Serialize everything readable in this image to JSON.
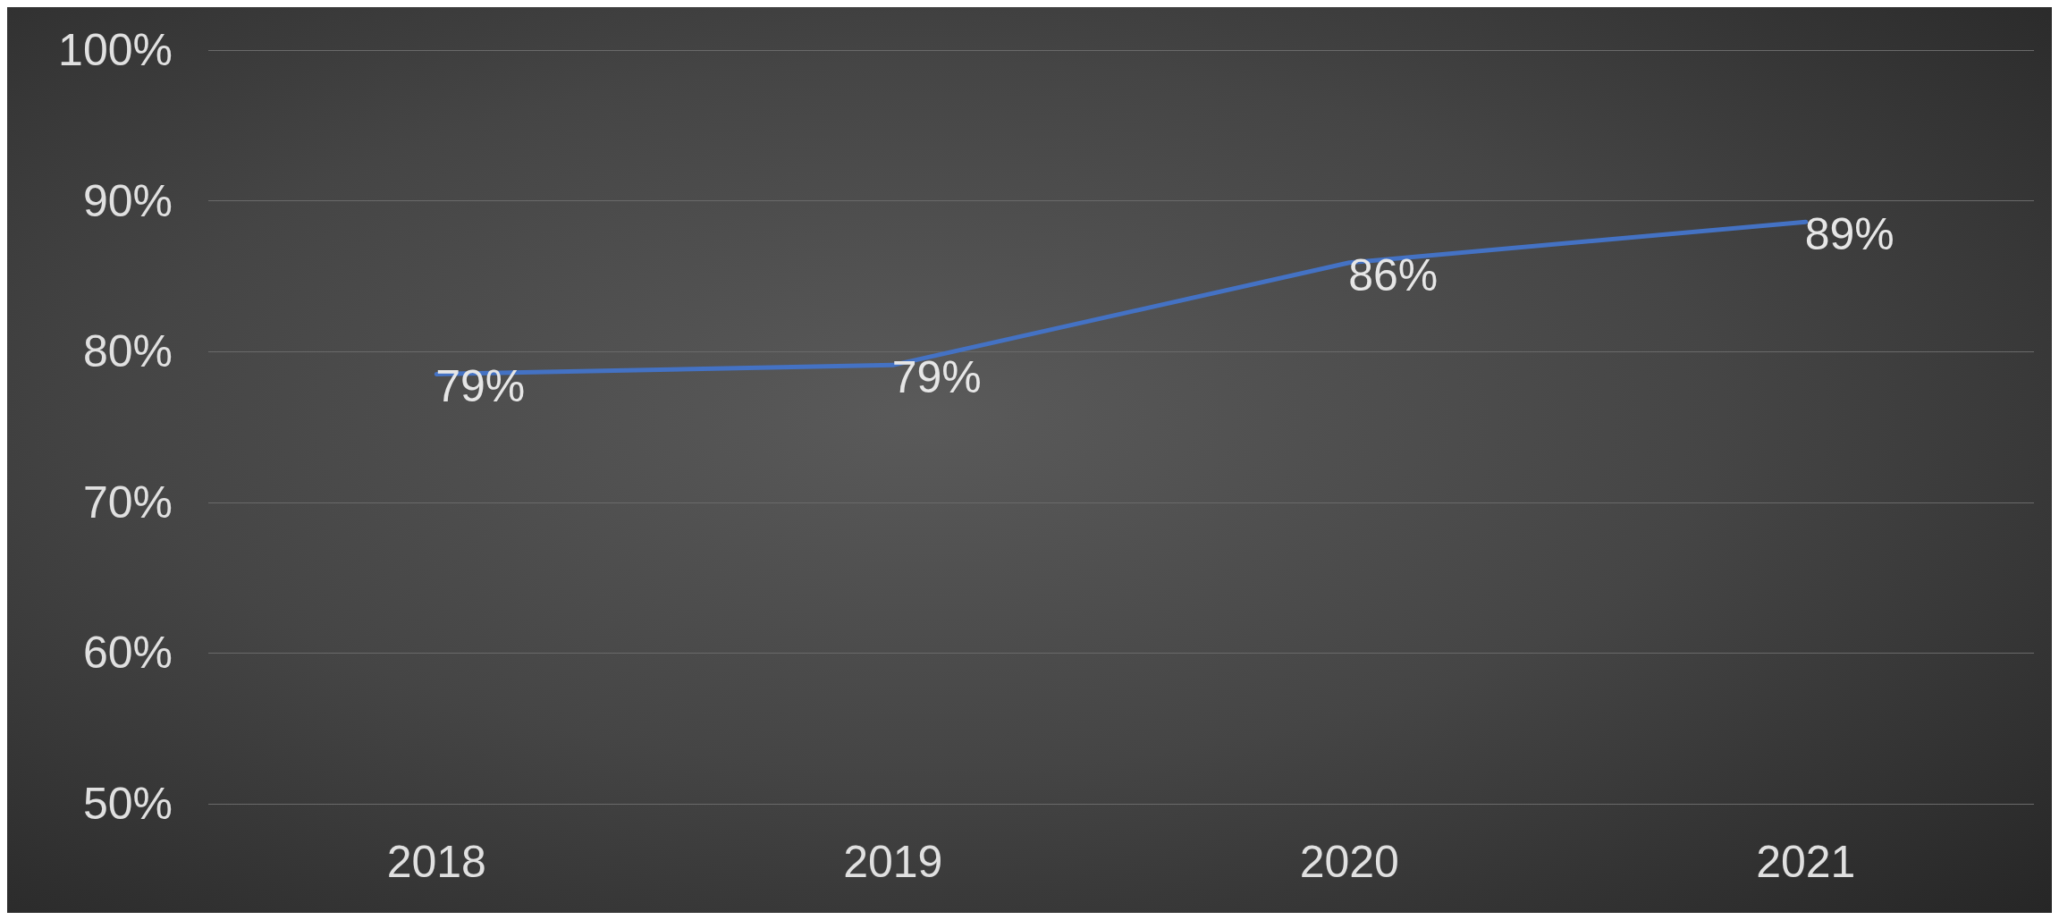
{
  "chart_data": {
    "type": "line",
    "categories": [
      "2018",
      "2019",
      "2020",
      "2021"
    ],
    "series": [
      {
        "color": "#4472c4",
        "values": [
          78.5,
          79.1,
          85.9,
          88.6
        ],
        "value_labels": [
          "79%",
          "79%",
          "86%",
          "89%"
        ]
      }
    ],
    "ylim": [
      50,
      100
    ],
    "yticks": [
      {
        "value": 50,
        "label": "50%"
      },
      {
        "value": 60,
        "label": "60%"
      },
      {
        "value": 70,
        "label": "70%"
      },
      {
        "value": 80,
        "label": "80%"
      },
      {
        "value": 90,
        "label": "90%"
      },
      {
        "value": 100,
        "label": "100%"
      }
    ],
    "grid": "y"
  }
}
